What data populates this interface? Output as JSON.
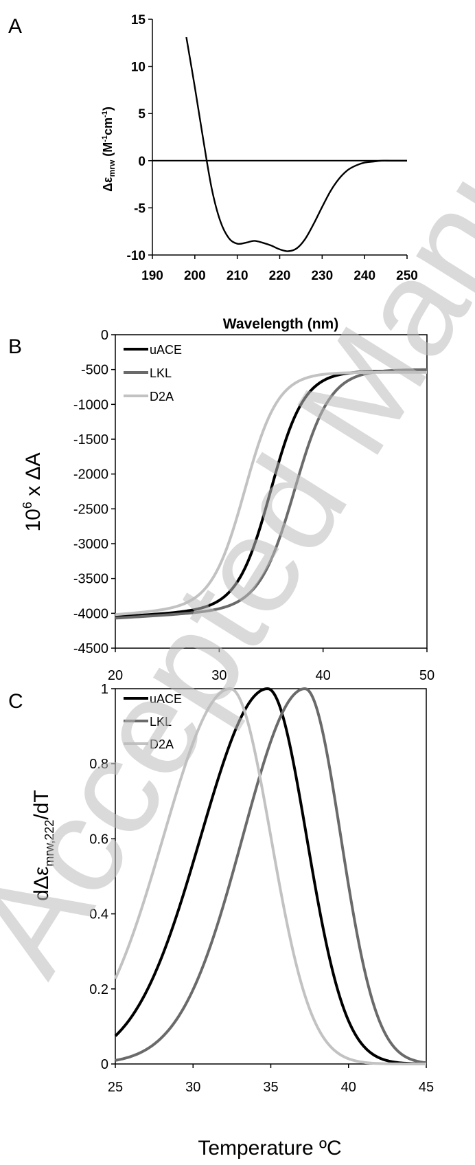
{
  "watermark": "Accepted Manuscript",
  "chart_data": [
    {
      "panel": "A",
      "type": "line",
      "xlabel": "Wavelength (nm)",
      "ylabel_parts": {
        "a": "Δε",
        "b": "mrw",
        "c": " (M",
        "d": "-1",
        "e": "cm",
        "f": "-1",
        "g": ")"
      },
      "xlim": [
        190,
        250
      ],
      "ylim": [
        -10,
        15
      ],
      "xticks": [
        "190",
        "200",
        "210",
        "220",
        "230",
        "240",
        "250"
      ],
      "yticks": [
        "-10",
        "-5",
        "0",
        "5",
        "10",
        "15"
      ],
      "zero_line": true,
      "series": [
        {
          "color": "#000000",
          "x": [
            198,
            200,
            202,
            204,
            206,
            208,
            210,
            212,
            214,
            216,
            218,
            220,
            222,
            224,
            226,
            228,
            230,
            232,
            234,
            236,
            238,
            240,
            242,
            244,
            246,
            248,
            250
          ],
          "y": [
            13.1,
            7.8,
            2.2,
            -3.0,
            -6.4,
            -8.2,
            -8.8,
            -8.7,
            -8.5,
            -8.7,
            -9.0,
            -9.4,
            -9.6,
            -9.3,
            -8.3,
            -6.7,
            -4.9,
            -3.2,
            -1.9,
            -1.0,
            -0.5,
            -0.2,
            -0.1,
            0.0,
            0.0,
            0.0,
            0.0
          ]
        }
      ]
    },
    {
      "panel": "B",
      "type": "line",
      "xlabel": "",
      "ylabel_parts": {
        "a": "10",
        "b": "6",
        "c": " x ΔA"
      },
      "xlim": [
        20,
        50
      ],
      "ylim": [
        -4500,
        0
      ],
      "xticks": [
        "20",
        "30",
        "40",
        "50"
      ],
      "yticks": [
        "-4500",
        "-4000",
        "-3500",
        "-3000",
        "-2500",
        "-2000",
        "-1500",
        "-1000",
        "-500",
        "0"
      ],
      "legend": "top-left",
      "series": [
        {
          "name": "uACE",
          "color": "#000000",
          "tm": 35.0,
          "width": 1.6,
          "base": [
            -4050,
            9
          ],
          "top": -520
        },
        {
          "name": "LKL",
          "color": "#6a6a6a",
          "tm": 37.3,
          "width": 1.7,
          "base": [
            -4070,
            9
          ],
          "top": -500
        },
        {
          "name": "D2A",
          "color": "#c2c2c2",
          "tm": 32.5,
          "width": 1.6,
          "base": [
            -4020,
            11
          ],
          "top": -540
        }
      ]
    },
    {
      "panel": "C",
      "type": "line",
      "xlabel": "Temperature ºC",
      "ylabel_parts": {
        "a": "dΔε",
        "b": "mrw,222",
        "c": "/dT"
      },
      "xlim": [
        25,
        45
      ],
      "ylim": [
        0,
        1
      ],
      "xticks": [
        "25",
        "30",
        "35",
        "40",
        "45"
      ],
      "yticks": [
        "0",
        "0.2",
        "0.4",
        "0.6",
        "0.8",
        "1"
      ],
      "legend": "top-left",
      "series": [
        {
          "name": "uACE",
          "color": "#000000",
          "peak": 34.8,
          "sigma_left": 4.3,
          "sigma_right": 2.5
        },
        {
          "name": "LKL",
          "color": "#6a6a6a",
          "peak": 37.2,
          "sigma_left": 4.0,
          "sigma_right": 2.3
        },
        {
          "name": "D2A",
          "color": "#c2c2c2",
          "peak": 32.4,
          "sigma_left": 4.3,
          "sigma_right": 2.6
        }
      ]
    }
  ]
}
